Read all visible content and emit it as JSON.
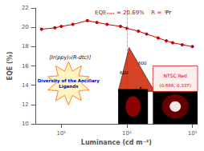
{
  "chart_data": {
    "type": "line",
    "x": [
      5,
      8,
      10,
      15,
      25,
      35,
      50,
      80,
      100,
      150,
      200,
      300,
      400,
      500,
      700,
      1000
    ],
    "values": [
      19.8,
      19.95,
      20.1,
      20.3,
      20.69,
      20.5,
      20.3,
      20.1,
      19.9,
      19.6,
      19.3,
      18.9,
      18.6,
      18.4,
      18.2,
      18.0
    ],
    "color": "#cc0000",
    "marker": "o",
    "log": "x",
    "xlabel": "Luminance (cd m⁻²)",
    "ylabel": "EQE (%)",
    "xlim": [
      4,
      1200
    ],
    "xticks": [
      {
        "value": 10,
        "label": "10¹"
      },
      {
        "value": 100,
        "label": "10²"
      },
      {
        "value": 1000,
        "label": "10³"
      }
    ],
    "ylim": [
      10,
      22
    ],
    "yticks": [
      10,
      12,
      14,
      16,
      18,
      20,
      22
    ],
    "grid": false,
    "reference_line_x": 100,
    "annotations": [
      {
        "text": "EQEₘₐₓ = 20.69%",
        "color": "#cc0000"
      },
      {
        "text": "R =",
        "color": "#ff0000"
      },
      {
        "text": "ⁱPr",
        "color": "#000000"
      },
      {
        "text": "[Ir(ppy)₂(R-dtc)]",
        "color": "#000000"
      },
      {
        "text": "Diversity of the Ancillary\nLigands",
        "color": "#0000cc"
      },
      {
        "text": "600",
        "color": "#000000"
      },
      {
        "text": "620",
        "color": "#000000"
      },
      {
        "text": "NTSC Red",
        "color": "#cc0000"
      },
      {
        "text": "(0.666, 0.337)",
        "color": "#cc0000"
      }
    ]
  }
}
